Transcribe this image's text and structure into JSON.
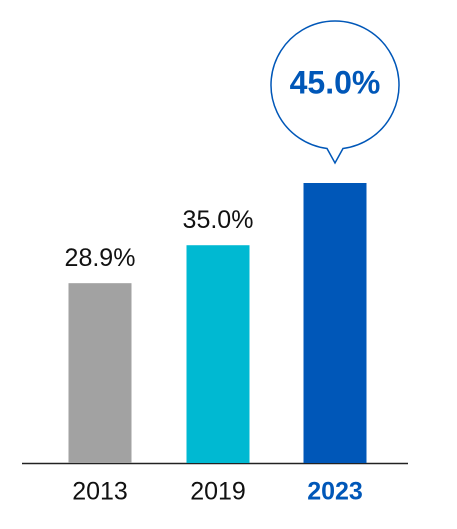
{
  "chart_data": {
    "type": "bar",
    "categories": [
      "2013",
      "2019",
      "2023"
    ],
    "values": [
      28.9,
      35.0,
      45.0
    ],
    "value_labels": [
      "28.9%",
      "35.0%",
      "45.0%"
    ],
    "colors": [
      "#a2a2a2",
      "#00b9d2",
      "#0057b8"
    ],
    "category_colors": [
      "#111111",
      "#111111",
      "#0057b8"
    ]
  }
}
